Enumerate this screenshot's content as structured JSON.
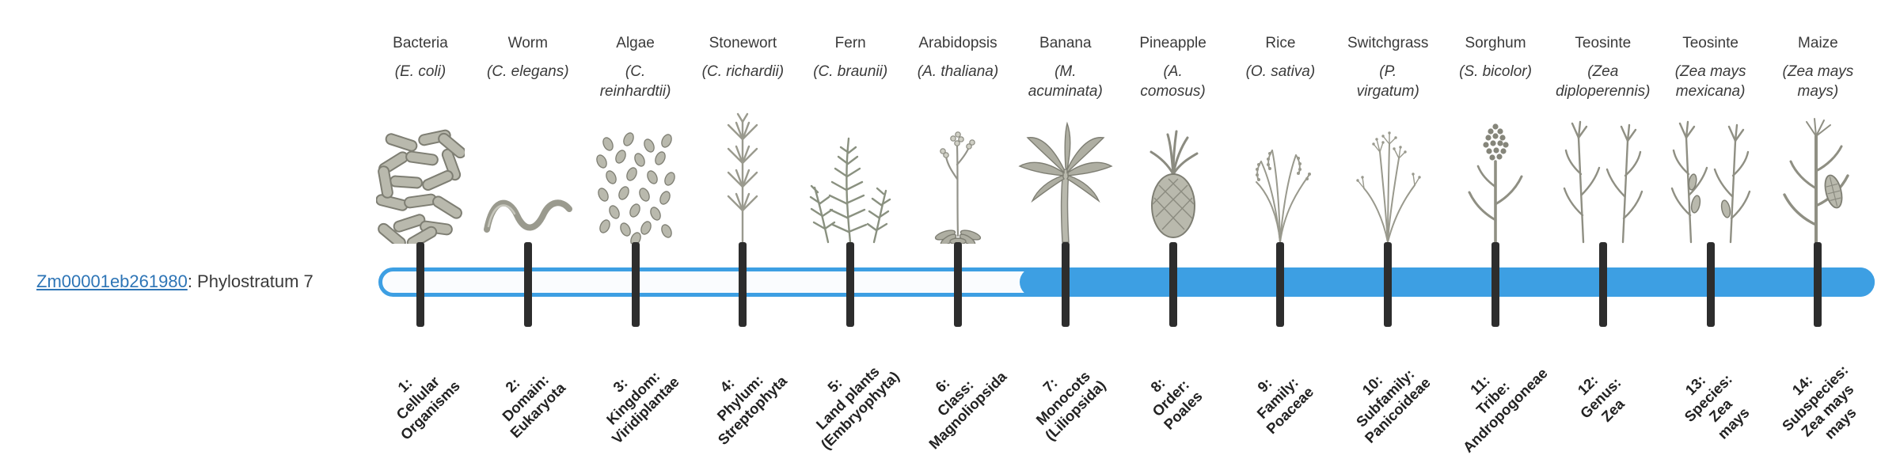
{
  "gene": {
    "id": "Zm00001eb261980",
    "rest": ": Phylostratum 7"
  },
  "colors": {
    "bar_blue": "#3d9fe3",
    "tick_dark": "#2d2d2d",
    "link_blue": "#2e75b6",
    "text": "#3a3a3a",
    "sketch_stroke": "#8f8f84",
    "sketch_fill": "#b9b9ad"
  },
  "timeline": {
    "total_strata": 14,
    "filled_from_stratum": 7
  },
  "organisms": [
    {
      "name": "Bacteria",
      "sci": "(E. coli)",
      "icon": "bacteria-icon",
      "stratum": "1:\nCellular\nOrganisms"
    },
    {
      "name": "Worm",
      "sci": "(C. elegans)",
      "icon": "worm-icon",
      "stratum": "2:\nDomain:\nEukaryota"
    },
    {
      "name": "Algae",
      "sci": "(C.\nreinhardtii)",
      "icon": "algae-icon",
      "stratum": "3:\nKingdom:\nViridiplantae"
    },
    {
      "name": "Stonewort",
      "sci": "(C. richardii)",
      "icon": "stonewort-icon",
      "stratum": "4:\nPhylum:\nStreptophyta"
    },
    {
      "name": "Fern",
      "sci": "(C. braunii)",
      "icon": "fern-icon",
      "stratum": "5:\nLand plants\n(Embryophyta)"
    },
    {
      "name": "Arabidopsis",
      "sci": "(A. thaliana)",
      "icon": "arabidopsis-icon",
      "stratum": "6:\nClass:\nMagnoliopsida"
    },
    {
      "name": "Banana",
      "sci": "(M.\nacuminata)",
      "icon": "banana-icon",
      "stratum": "7:\nMonocots\n(Liliopsida)"
    },
    {
      "name": "Pineapple",
      "sci": "(A.\ncomosus)",
      "icon": "pineapple-icon",
      "stratum": "8:\nOrder:\nPoales"
    },
    {
      "name": "Rice",
      "sci": "(O. sativa)",
      "icon": "rice-icon",
      "stratum": "9:\nFamily:\nPoaceae"
    },
    {
      "name": "Switchgrass",
      "sci": "(P.\nvirgatum)",
      "icon": "switchgrass-icon",
      "stratum": "10:\nSubfamily:\nPanicoideae"
    },
    {
      "name": "Sorghum",
      "sci": "(S. bicolor)",
      "icon": "sorghum-icon",
      "stratum": "11:\nTribe:\nAndropogoneae"
    },
    {
      "name": "Teosinte",
      "sci": "(Zea\ndiploperennis)",
      "icon": "teosinte-icon",
      "stratum": "12:\nGenus:\nZea"
    },
    {
      "name": "Teosinte",
      "sci": "(Zea mays\nmexicana)",
      "icon": "teosinte-ears-icon",
      "stratum": "13:\nSpecies:\nZea\nmays"
    },
    {
      "name": "Maize",
      "sci": "(Zea mays\nmays)",
      "icon": "maize-icon",
      "stratum": "14:\nSubspecies:\nZea mays\nmays"
    }
  ]
}
